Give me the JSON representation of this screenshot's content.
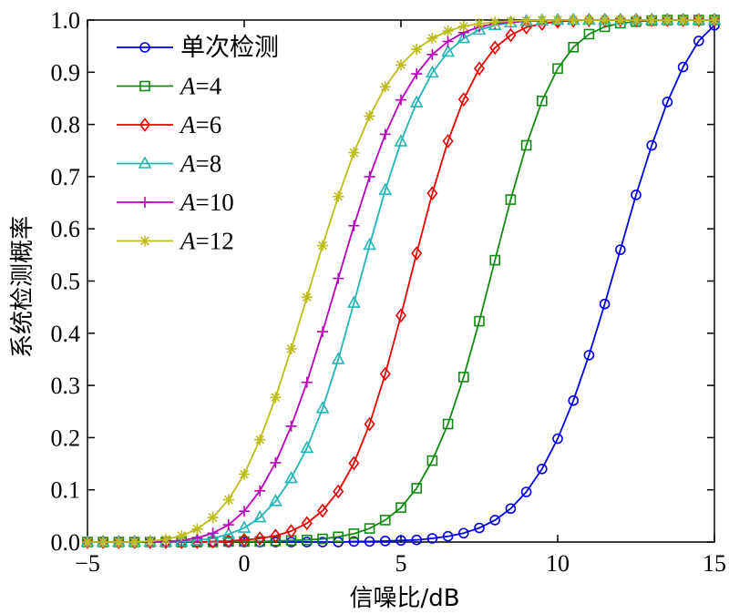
{
  "chart_data": {
    "type": "line",
    "title": "",
    "xlabel": "信噪比/dB",
    "ylabel": "系统检测概率",
    "xlim": [
      -5,
      15
    ],
    "ylim": [
      0,
      1
    ],
    "xticks": [
      "−5",
      "0",
      "5",
      "10",
      "15"
    ],
    "xtick_values": [
      -5,
      0,
      5,
      10,
      15
    ],
    "yticks": [
      "0.0",
      "0.1",
      "0.2",
      "0.3",
      "0.4",
      "0.5",
      "0.6",
      "0.7",
      "0.8",
      "0.9",
      "1.0"
    ],
    "ytick_values": [
      0,
      0.1,
      0.2,
      0.3,
      0.4,
      0.5,
      0.6,
      0.7,
      0.8,
      0.9,
      1.0
    ],
    "grid": false,
    "legend_position": "top-left",
    "x": [
      -5,
      -4.5,
      -4,
      -3.5,
      -3,
      -2.5,
      -2,
      -1.5,
      -1,
      -0.5,
      0,
      0.5,
      1,
      1.5,
      2,
      2.5,
      3,
      3.5,
      4,
      4.5,
      5,
      5.5,
      6,
      6.5,
      7,
      7.5,
      8,
      8.5,
      9,
      9.5,
      10,
      10.5,
      11,
      11.5,
      12,
      12.5,
      13,
      13.5,
      14,
      14.5,
      15
    ],
    "series": [
      {
        "name": "单次检测",
        "prefix": "",
        "var": "",
        "suffix": "",
        "color": "#0000ee",
        "marker": "circle",
        "values": [
          0,
          0,
          0,
          0,
          0,
          0,
          0,
          0,
          0,
          0,
          0,
          0,
          0,
          0,
          0,
          0,
          0,
          0.001,
          0.001,
          0.002,
          0.003,
          0.004,
          0.007,
          0.011,
          0.017,
          0.027,
          0.042,
          0.064,
          0.096,
          0.14,
          0.198,
          0.271,
          0.358,
          0.456,
          0.56,
          0.665,
          0.76,
          0.843,
          0.91,
          0.96,
          0.99
        ]
      },
      {
        "name": "A=4",
        "prefix": "",
        "var": "A",
        "suffix": "=4",
        "color": "#138a13",
        "marker": "square",
        "values": [
          0,
          0,
          0,
          0,
          0,
          0,
          0,
          0,
          0,
          0.001,
          0.001,
          0.001,
          0.002,
          0.003,
          0.004,
          0.006,
          0.01,
          0.016,
          0.026,
          0.042,
          0.066,
          0.103,
          0.156,
          0.226,
          0.316,
          0.423,
          0.54,
          0.656,
          0.76,
          0.845,
          0.907,
          0.948,
          0.973,
          0.987,
          0.994,
          0.997,
          0.999,
          1,
          1,
          1,
          1
        ]
      },
      {
        "name": "A=6",
        "prefix": "",
        "var": "A",
        "suffix": "=6",
        "color": "#ee0000",
        "marker": "diamond",
        "values": [
          0,
          0,
          0,
          0,
          0,
          0,
          0,
          0,
          0.001,
          0.002,
          0.004,
          0.007,
          0.012,
          0.021,
          0.036,
          0.06,
          0.097,
          0.151,
          0.226,
          0.322,
          0.434,
          0.553,
          0.668,
          0.768,
          0.848,
          0.907,
          0.947,
          0.971,
          0.986,
          0.993,
          0.997,
          0.999,
          1,
          1,
          1,
          1,
          1,
          1,
          1,
          1,
          1
        ]
      },
      {
        "name": "A=8",
        "prefix": "",
        "var": "A",
        "suffix": "=8",
        "color": "#22b5b5",
        "marker": "triangle",
        "values": [
          0,
          0,
          0,
          0,
          0,
          0,
          0.001,
          0.003,
          0.007,
          0.015,
          0.027,
          0.047,
          0.078,
          0.122,
          0.18,
          0.256,
          0.35,
          0.458,
          0.569,
          0.674,
          0.767,
          0.842,
          0.899,
          0.939,
          0.965,
          0.981,
          0.99,
          0.995,
          0.998,
          0.999,
          1,
          1,
          1,
          1,
          1,
          1,
          1,
          1,
          1,
          1,
          1
        ]
      },
      {
        "name": "A=10",
        "prefix": "",
        "var": "A",
        "suffix": "=10",
        "color": "#bb00bb",
        "marker": "plus",
        "values": [
          0,
          0,
          0,
          0,
          0,
          0.001,
          0.003,
          0.008,
          0.017,
          0.033,
          0.059,
          0.098,
          0.152,
          0.222,
          0.306,
          0.403,
          0.505,
          0.606,
          0.7,
          0.781,
          0.847,
          0.897,
          0.934,
          0.959,
          0.976,
          0.987,
          0.993,
          0.996,
          0.998,
          0.999,
          1,
          1,
          1,
          1,
          1,
          1,
          1,
          1,
          1,
          1,
          1
        ]
      },
      {
        "name": "A=12",
        "prefix": "",
        "var": "A",
        "suffix": "=12",
        "color": "#bdbd18",
        "marker": "asterisk",
        "values": [
          0,
          0,
          0,
          0,
          0.002,
          0.005,
          0.012,
          0.025,
          0.047,
          0.081,
          0.13,
          0.196,
          0.277,
          0.37,
          0.469,
          0.568,
          0.662,
          0.746,
          0.816,
          0.872,
          0.914,
          0.944,
          0.965,
          0.979,
          0.988,
          0.993,
          0.996,
          0.998,
          0.999,
          1,
          1,
          1,
          1,
          1,
          1,
          1,
          1,
          1,
          1,
          1,
          1
        ]
      }
    ]
  }
}
